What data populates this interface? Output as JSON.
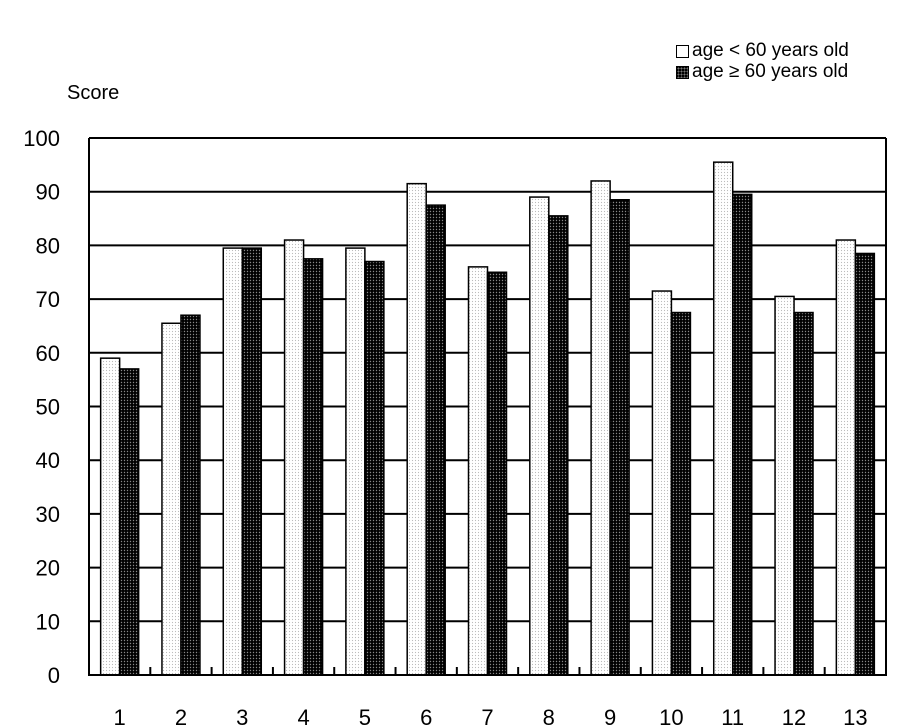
{
  "chart_data": {
    "type": "bar",
    "title": "",
    "xlabel": "",
    "ylabel": "Score",
    "ylim": [
      0,
      100
    ],
    "yticks": [
      0,
      10,
      20,
      30,
      40,
      50,
      60,
      70,
      80,
      90,
      100
    ],
    "grid": "horizontal",
    "legend_position": "top-right",
    "categories": [
      "1",
      "2",
      "3",
      "4",
      "5",
      "6",
      "7",
      "8",
      "9",
      "10",
      "11",
      "12",
      "13"
    ],
    "series": [
      {
        "name": "age < 60 years old",
        "color": "#ffffff",
        "values": [
          59,
          65.5,
          79.5,
          81,
          79.5,
          91.5,
          76,
          89,
          92,
          71.5,
          95.5,
          70.5,
          81
        ]
      },
      {
        "name": "age ≥ 60 years old",
        "color": "#000000",
        "values": [
          57,
          67,
          79.5,
          77.5,
          77,
          87.5,
          75,
          85.5,
          88.5,
          67.5,
          89.5,
          67.5,
          78.5
        ]
      }
    ]
  }
}
